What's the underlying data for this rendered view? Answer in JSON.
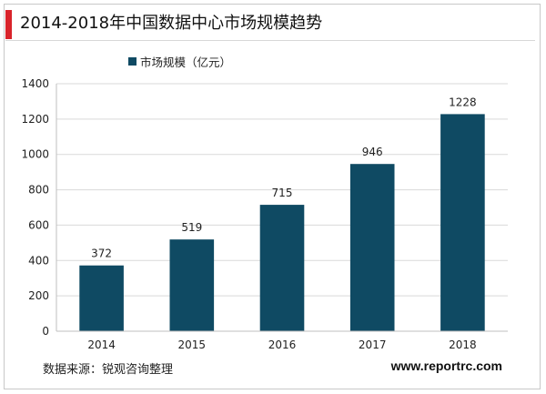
{
  "title": "2014-2018年中国数据中心市场规模趋势",
  "accent_color": "#d9242b",
  "bar_color": "#0f4a63",
  "legend": {
    "label": "市场规模（亿元）"
  },
  "chart_data": {
    "type": "bar",
    "categories": [
      "2014",
      "2015",
      "2016",
      "2017",
      "2018"
    ],
    "series": [
      {
        "name": "市场规模（亿元）",
        "values": [
          372,
          519,
          715,
          946,
          1228
        ]
      }
    ],
    "data_labels": [
      "372",
      "519",
      "715",
      "946",
      "1228"
    ],
    "yticks": [
      "0",
      "200",
      "400",
      "600",
      "800",
      "1000",
      "1200",
      "1400"
    ],
    "ylim": [
      0,
      1400
    ],
    "grid": true,
    "legend_position": "top-left"
  },
  "footer": {
    "source": "数据来源：锐观咨询整理",
    "website": "www.reportrc.com"
  }
}
